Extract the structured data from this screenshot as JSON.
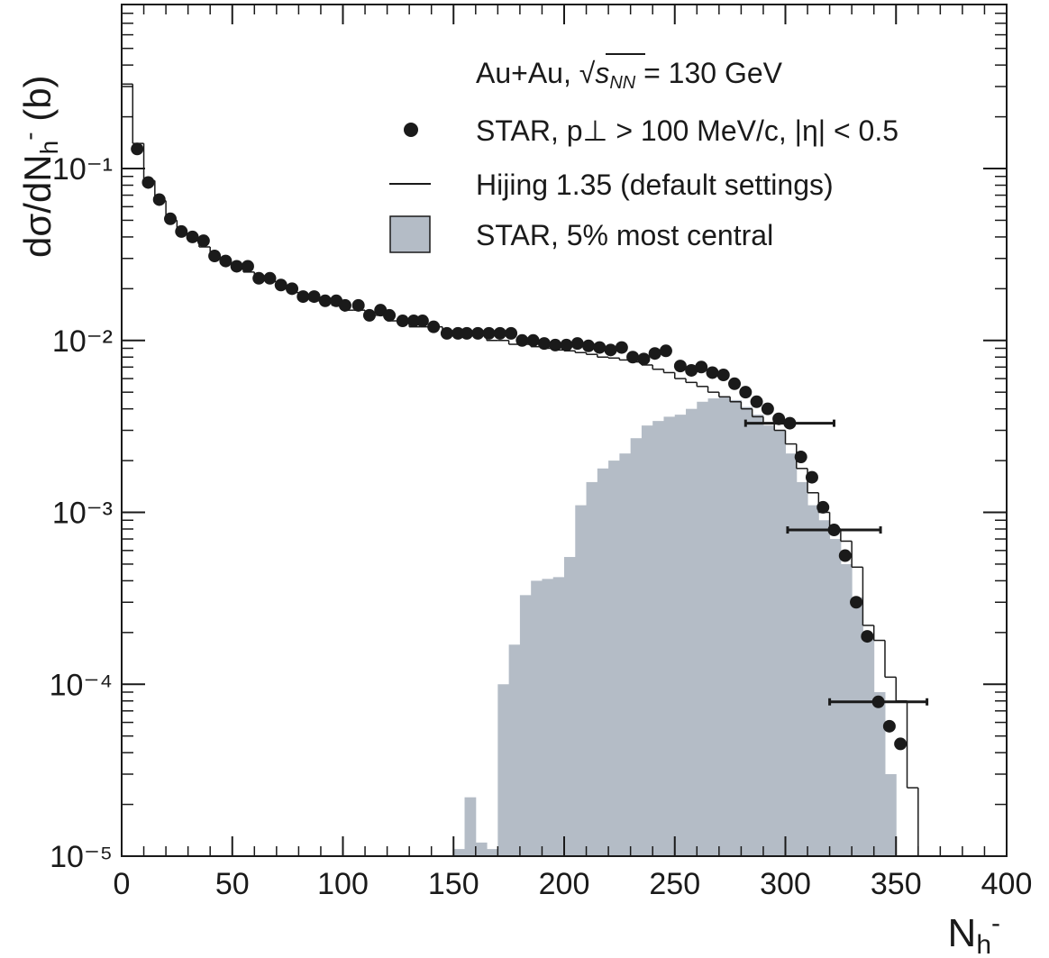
{
  "chart_data": {
    "type": "scatter",
    "annotation": {
      "prefix": "Au+Au, √",
      "var": "s",
      "sub": "NN",
      "suffix": " = 130 GeV"
    },
    "xlabel": {
      "text": "N",
      "sub": "h",
      "sup": "-"
    },
    "ylabel": {
      "text": "dσ/dN",
      "sub": "h",
      "sup": "-",
      "unit": " (b)"
    },
    "xlim": [
      0,
      400
    ],
    "xticks": [
      0,
      50,
      100,
      150,
      200,
      250,
      300,
      350,
      400
    ],
    "ylim": [
      1e-05,
      0.9
    ],
    "log_y": true,
    "yticks": [
      {
        "value": 1e-05,
        "label": "10⁻⁵"
      },
      {
        "value": 0.0001,
        "label": "10⁻⁴"
      },
      {
        "value": 0.001,
        "label": "10⁻³"
      },
      {
        "value": 0.01,
        "label": "10⁻²"
      },
      {
        "value": 0.1,
        "label": "10⁻¹"
      }
    ],
    "legend": "upper right",
    "series": [
      {
        "name": "STAR, p⊥ > 100 MeV/c, |η| < 0.5",
        "type": "scatter",
        "color": "#1a1a1a",
        "x": [
          7,
          12,
          17,
          22,
          27,
          32,
          37,
          42,
          47,
          52,
          57,
          62,
          67,
          72,
          77,
          82,
          87,
          92,
          97,
          101,
          107,
          112,
          117,
          121,
          127,
          132,
          136,
          141,
          147,
          152,
          156,
          161,
          166,
          171,
          176,
          181,
          186,
          191,
          196,
          201,
          206,
          211,
          216,
          221,
          226,
          231,
          236,
          241,
          246,
          252.5,
          257.5,
          262,
          267,
          272,
          277,
          282,
          287,
          292,
          297,
          302,
          307,
          312,
          317,
          322,
          327,
          332,
          337,
          342,
          347,
          352
        ],
        "values": [
          0.13,
          0.083,
          0.066,
          0.051,
          0.043,
          0.04,
          0.038,
          0.031,
          0.029,
          0.027,
          0.027,
          0.023,
          0.023,
          0.021,
          0.02,
          0.018,
          0.018,
          0.017,
          0.017,
          0.016,
          0.016,
          0.014,
          0.015,
          0.014,
          0.013,
          0.013,
          0.013,
          0.012,
          0.011,
          0.011,
          0.011,
          0.011,
          0.011,
          0.011,
          0.011,
          0.01,
          0.01,
          0.0096,
          0.0094,
          0.0094,
          0.0096,
          0.0093,
          0.0091,
          0.0088,
          0.0091,
          0.008,
          0.0078,
          0.0084,
          0.0087,
          0.0071,
          0.0067,
          0.007,
          0.0065,
          0.0063,
          0.0056,
          0.005,
          0.0044,
          0.004,
          0.0035,
          0.0033,
          0.0021,
          0.0016,
          0.00107,
          0.00079,
          0.00056,
          0.0003,
          0.00019,
          7.9e-05,
          5.7e-05,
          4.5e-05
        ],
        "xerr": [
          null,
          null,
          null,
          null,
          null,
          null,
          null,
          null,
          null,
          null,
          null,
          null,
          null,
          null,
          null,
          null,
          null,
          null,
          null,
          null,
          null,
          null,
          null,
          null,
          null,
          null,
          null,
          null,
          null,
          null,
          null,
          null,
          null,
          null,
          null,
          null,
          null,
          null,
          null,
          null,
          null,
          null,
          null,
          null,
          null,
          null,
          null,
          null,
          null,
          null,
          null,
          null,
          null,
          null,
          null,
          null,
          null,
          null,
          null,
          20,
          null,
          null,
          null,
          21,
          null,
          null,
          null,
          22,
          null,
          null
        ]
      },
      {
        "name": "Hijing 1.35 (default settings)",
        "type": "step",
        "color": "#1a1a1a",
        "bins": [
          0,
          5,
          10,
          15,
          20,
          25,
          30,
          35,
          40,
          45,
          50,
          55,
          60,
          65,
          70,
          75,
          80,
          85,
          90,
          95,
          100,
          105,
          110,
          115,
          120,
          125,
          130,
          135,
          140,
          145,
          150,
          155,
          160,
          165,
          170,
          175,
          180,
          185,
          190,
          195,
          200,
          205,
          210,
          215,
          220,
          225,
          230,
          235,
          240,
          245,
          250,
          255,
          260,
          265,
          270,
          275,
          280,
          285,
          290,
          295,
          300,
          305,
          310,
          315,
          320,
          325,
          330,
          335,
          340,
          345,
          350,
          355,
          360
        ],
        "values": [
          0.31,
          0.14,
          0.085,
          0.065,
          0.05,
          0.042,
          0.038,
          0.035,
          0.03,
          0.028,
          0.026,
          0.025,
          0.023,
          0.022,
          0.02,
          0.019,
          0.018,
          0.017,
          0.017,
          0.016,
          0.015,
          0.015,
          0.014,
          0.014,
          0.013,
          0.013,
          0.012,
          0.012,
          0.012,
          0.011,
          0.011,
          0.011,
          0.011,
          0.01,
          0.01,
          0.0095,
          0.0095,
          0.0092,
          0.009,
          0.0088,
          0.0087,
          0.0085,
          0.0083,
          0.008,
          0.0079,
          0.0077,
          0.0075,
          0.0072,
          0.0068,
          0.0065,
          0.006,
          0.0057,
          0.0054,
          0.005,
          0.0047,
          0.0044,
          0.004,
          0.0036,
          0.0033,
          0.003,
          0.0025,
          0.0018,
          0.0013,
          0.001,
          0.0008,
          0.00068,
          0.00048,
          0.00022,
          0.00018,
          0.00011,
          8e-05,
          2.5e-05
        ]
      },
      {
        "name": "STAR, 5% most central",
        "type": "histogram",
        "color": "#b4bcc6",
        "bins": [
          150,
          155,
          160,
          165,
          170,
          175,
          180,
          185,
          190,
          195,
          200,
          205,
          210,
          215,
          220,
          225,
          230,
          235,
          240,
          245,
          250,
          255,
          260,
          265,
          270,
          275,
          280,
          285,
          290,
          295,
          300,
          305,
          310,
          315,
          320,
          325,
          330,
          335,
          340,
          345,
          350
        ],
        "values": [
          1.1e-05,
          2.2e-05,
          1.2e-05,
          1.1e-05,
          0.0001,
          0.00017,
          0.00033,
          0.0004,
          0.00041,
          0.00042,
          0.00055,
          0.0011,
          0.0015,
          0.0018,
          0.002,
          0.0022,
          0.0027,
          0.0032,
          0.0034,
          0.0036,
          0.0037,
          0.004,
          0.0044,
          0.0046,
          0.0047,
          0.0045,
          0.0041,
          0.0037,
          0.0032,
          0.003,
          0.0022,
          0.0015,
          0.0011,
          0.0009,
          0.0007,
          0.0005,
          0.00032,
          0.00019,
          9e-05,
          3e-05
        ]
      }
    ]
  }
}
